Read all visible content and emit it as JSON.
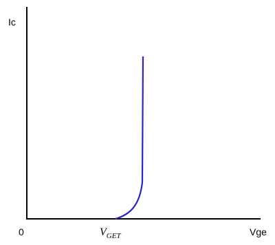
{
  "labels": {
    "y_axis": "Ic",
    "origin": "0",
    "threshold": {
      "main": "V",
      "subscript": "GET"
    },
    "x_axis": "Vge"
  }
}
